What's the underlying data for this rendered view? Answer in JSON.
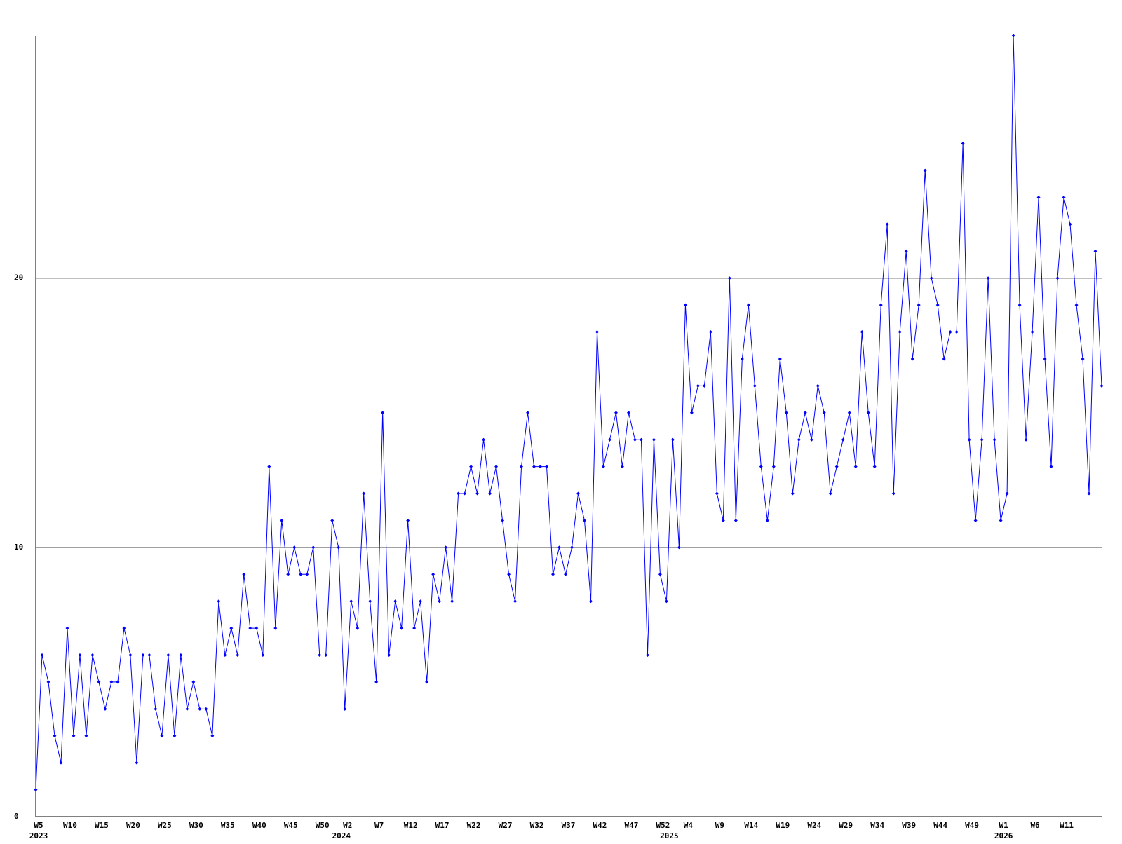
{
  "chart_data": {
    "type": "line",
    "categories": [
      "W5",
      null,
      null,
      null,
      null,
      "W10",
      null,
      null,
      null,
      null,
      "W15",
      null,
      null,
      null,
      null,
      "W20",
      null,
      null,
      null,
      null,
      "W25",
      null,
      null,
      null,
      null,
      "W30",
      null,
      null,
      null,
      null,
      "W35",
      null,
      null,
      null,
      null,
      "W40",
      null,
      null,
      null,
      null,
      "W45",
      null,
      null,
      null,
      null,
      "W50",
      null,
      null,
      null,
      "W2",
      null,
      null,
      null,
      null,
      "W7",
      null,
      null,
      null,
      null,
      "W12",
      null,
      null,
      null,
      null,
      "W17",
      null,
      null,
      null,
      null,
      "W22",
      null,
      null,
      null,
      null,
      "W27",
      null,
      null,
      null,
      null,
      "W32",
      null,
      null,
      null,
      null,
      "W37",
      null,
      null,
      null,
      null,
      "W42",
      null,
      null,
      null,
      null,
      "W47",
      null,
      null,
      null,
      null,
      "W52",
      null,
      null,
      null,
      "W4",
      null,
      null,
      null,
      null,
      "W9",
      null,
      null,
      null,
      null,
      "W14",
      null,
      null,
      null,
      null,
      "W19",
      null,
      null,
      null,
      null,
      "W24",
      null,
      null,
      null,
      null,
      "W29",
      null,
      null,
      null,
      null,
      "W34",
      null,
      null,
      null,
      null,
      "W39",
      null,
      null,
      null,
      null,
      "W44",
      null,
      null,
      null,
      null,
      "W49",
      null,
      null,
      null,
      null,
      "W1",
      null,
      null,
      null,
      null,
      "W6",
      null,
      null,
      null,
      null,
      "W11",
      null,
      null,
      null,
      null,
      null,
      null
    ],
    "years": [
      {
        "label": "2023",
        "start": 0
      },
      {
        "label": "2024",
        "start": 48
      },
      {
        "label": "2025",
        "start": 100
      },
      {
        "label": "2026",
        "start": 153
      }
    ],
    "series": [
      {
        "color": "#0000ff",
        "values": [
          1,
          6,
          5,
          3,
          2,
          7,
          3,
          6,
          3,
          6,
          5,
          4,
          5,
          5,
          7,
          6,
          2,
          6,
          6,
          4,
          3,
          6,
          3,
          6,
          4,
          5,
          4,
          4,
          3,
          8,
          6,
          7,
          6,
          9,
          7,
          7,
          6,
          13,
          7,
          11,
          9,
          10,
          9,
          9,
          10,
          6,
          6,
          11,
          10,
          4,
          8,
          7,
          12,
          8,
          5,
          15,
          6,
          8,
          7,
          11,
          7,
          8,
          5,
          9,
          8,
          10,
          8,
          12,
          12,
          13,
          12,
          14,
          12,
          13,
          11,
          9,
          8,
          13,
          15,
          13,
          13,
          13,
          9,
          10,
          9,
          10,
          12,
          11,
          8,
          18,
          13,
          14,
          15,
          13,
          15,
          14,
          14,
          6,
          14,
          9,
          8,
          14,
          10,
          19,
          15,
          16,
          16,
          18,
          12,
          11,
          20,
          11,
          17,
          19,
          16,
          13,
          11,
          13,
          17,
          15,
          12,
          14,
          15,
          14,
          16,
          15,
          12,
          13,
          14,
          15,
          13,
          18,
          15,
          13,
          19,
          22,
          12,
          18,
          21,
          17,
          19,
          24,
          20,
          19,
          17,
          18,
          18,
          25,
          14,
          11,
          14,
          20,
          14,
          11,
          12,
          29,
          19,
          14,
          18,
          23,
          17,
          13,
          20,
          23,
          22,
          19,
          17,
          12,
          21,
          16
        ]
      }
    ],
    "ylim": [
      0,
      29
    ],
    "yticks": [
      0,
      10,
      20
    ],
    "grid": true
  }
}
